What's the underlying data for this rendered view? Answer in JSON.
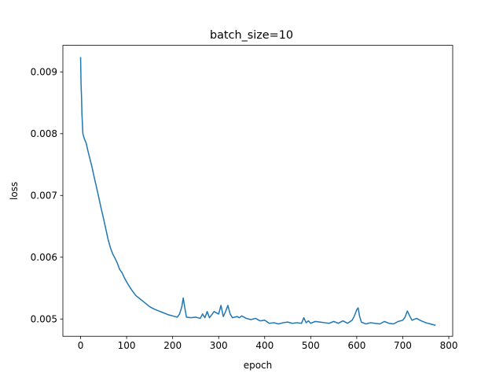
{
  "chart_data": {
    "type": "line",
    "title": "batch_size=10",
    "xlabel": "epoch",
    "ylabel": "loss",
    "xlim": [
      -38.5,
      808.5
    ],
    "ylim": [
      0.00472,
      0.00943
    ],
    "xticks": [
      0,
      100,
      200,
      300,
      400,
      500,
      600,
      700,
      800
    ],
    "xtick_labels": [
      "0",
      "100",
      "200",
      "300",
      "400",
      "500",
      "600",
      "700",
      "800"
    ],
    "yticks": [
      0.005,
      0.006,
      0.007,
      0.008,
      0.009
    ],
    "ytick_labels": [
      "0.005",
      "0.006",
      "0.007",
      "0.008",
      "0.009"
    ],
    "grid": false,
    "legend": "none",
    "series": [
      {
        "color": "#1f77b4",
        "x": [
          0,
          1,
          2,
          3,
          5,
          8,
          12,
          16,
          20,
          25,
          30,
          35,
          40,
          45,
          50,
          55,
          60,
          65,
          70,
          75,
          80,
          85,
          90,
          95,
          100,
          110,
          120,
          130,
          140,
          150,
          160,
          170,
          180,
          190,
          200,
          210,
          215,
          220,
          223,
          226,
          230,
          240,
          250,
          260,
          265,
          270,
          275,
          280,
          290,
          300,
          305,
          310,
          315,
          320,
          325,
          330,
          340,
          345,
          350,
          360,
          370,
          380,
          390,
          400,
          410,
          420,
          430,
          440,
          450,
          460,
          470,
          480,
          485,
          490,
          495,
          500,
          510,
          520,
          530,
          540,
          550,
          560,
          570,
          580,
          590,
          595,
          600,
          603,
          606,
          610,
          620,
          630,
          640,
          650,
          660,
          670,
          680,
          690,
          700,
          705,
          710,
          715,
          720,
          730,
          740,
          750,
          760,
          770
        ],
        "values": [
          0.00923,
          0.0088,
          0.0086,
          0.0083,
          0.008,
          0.00792,
          0.00785,
          0.00772,
          0.0076,
          0.00745,
          0.00728,
          0.00712,
          0.00695,
          0.00678,
          0.00662,
          0.00645,
          0.00628,
          0.00615,
          0.00605,
          0.00598,
          0.0059,
          0.0058,
          0.00575,
          0.00567,
          0.0056,
          0.00548,
          0.00538,
          0.00532,
          0.00526,
          0.0052,
          0.00516,
          0.00513,
          0.0051,
          0.00507,
          0.00505,
          0.00503,
          0.00508,
          0.0052,
          0.00534,
          0.0052,
          0.00503,
          0.00502,
          0.00503,
          0.00501,
          0.00508,
          0.00502,
          0.00512,
          0.00502,
          0.00512,
          0.00508,
          0.00522,
          0.00504,
          0.00512,
          0.00522,
          0.00508,
          0.00502,
          0.00504,
          0.00502,
          0.00505,
          0.00501,
          0.00499,
          0.00501,
          0.00497,
          0.00498,
          0.00493,
          0.00494,
          0.00492,
          0.00494,
          0.00495,
          0.00493,
          0.00494,
          0.00493,
          0.00502,
          0.00494,
          0.00497,
          0.00493,
          0.00496,
          0.00495,
          0.00494,
          0.00493,
          0.00496,
          0.00493,
          0.00497,
          0.00493,
          0.00498,
          0.00505,
          0.00515,
          0.00518,
          0.00505,
          0.00495,
          0.00492,
          0.00494,
          0.00493,
          0.00492,
          0.00496,
          0.00493,
          0.00492,
          0.00496,
          0.00498,
          0.00503,
          0.00513,
          0.00505,
          0.00498,
          0.00501,
          0.00497,
          0.00494,
          0.00492,
          0.0049
        ]
      }
    ]
  }
}
